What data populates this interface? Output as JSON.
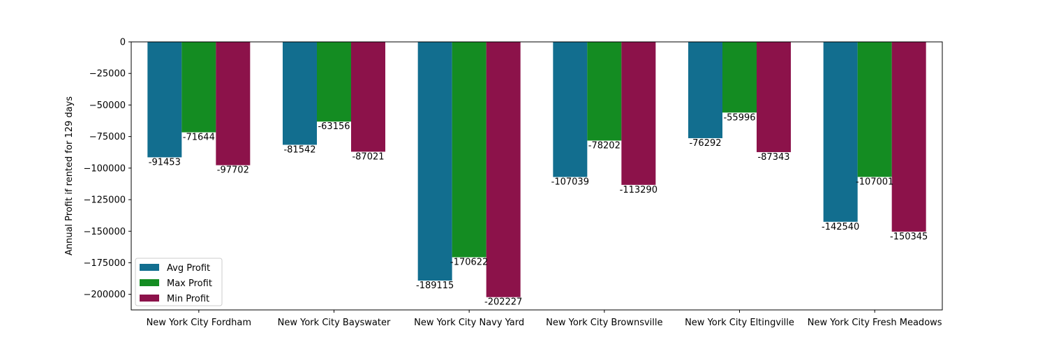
{
  "chart_data": {
    "type": "bar",
    "title": "",
    "xlabel": "",
    "ylabel": "Annual Profit if rented for 129 days",
    "categories": [
      "New York City Fordham",
      "New York City Bayswater",
      "New York City Navy Yard",
      "New York City Brownsville",
      "New York City Eltingville",
      "New York City Fresh Meadows"
    ],
    "series": [
      {
        "name": "Avg Profit",
        "color": "#126e8f",
        "values": [
          -91453,
          -81542,
          -189115,
          -107039,
          -76292,
          -142540
        ]
      },
      {
        "name": "Max Profit",
        "color": "#148c22",
        "values": [
          -71644,
          -63156,
          -170622,
          -78202,
          -55996,
          -107001
        ]
      },
      {
        "name": "Min Profit",
        "color": "#8c124a",
        "values": [
          -97702,
          -87021,
          -202227,
          -113290,
          -87343,
          -150345
        ]
      }
    ],
    "ylim": [
      -212338,
      0
    ],
    "yticks": [
      0,
      -25000,
      -50000,
      -75000,
      -100000,
      -125000,
      -150000,
      -175000,
      -200000
    ],
    "ytick_labels": [
      "0",
      "−25000",
      "−50000",
      "−75000",
      "−100000",
      "−125000",
      "−150000",
      "−175000",
      "−200000"
    ],
    "legend_position": "lower-left",
    "grid": false
  }
}
